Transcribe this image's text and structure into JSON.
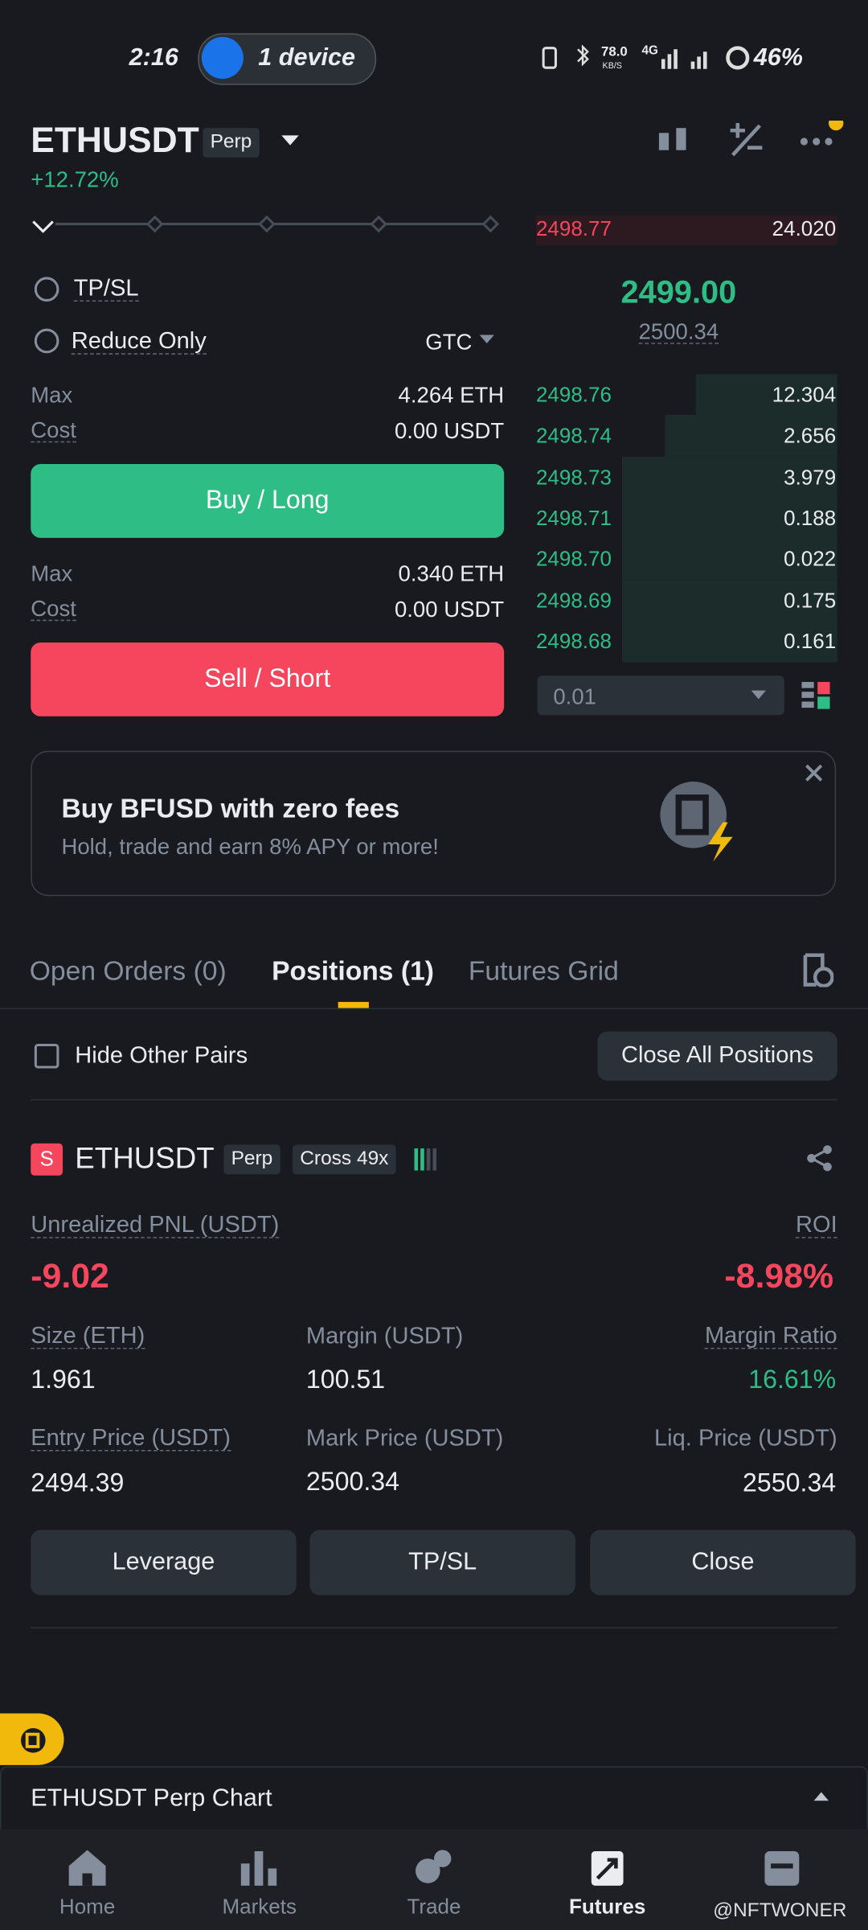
{
  "status": {
    "time": "2:16",
    "hotspot": "1 device",
    "speed": "78.0",
    "speed_unit": "KB/S",
    "network": "4G",
    "battery": "46%"
  },
  "header": {
    "symbol": "ETHUSDT",
    "tag": "Perp",
    "change": "+12.72%"
  },
  "orderbook": {
    "asks": [
      {
        "price": "2498.77",
        "qty": "24.020"
      }
    ],
    "last_price": "2499.00",
    "mark_price": "2500.34",
    "bids": [
      {
        "price": "2498.76",
        "qty": "12.304"
      },
      {
        "price": "2498.74",
        "qty": "2.656"
      },
      {
        "price": "2498.73",
        "qty": "3.979"
      },
      {
        "price": "2498.71",
        "qty": "0.188"
      },
      {
        "price": "2498.70",
        "qty": "0.022"
      },
      {
        "price": "2498.69",
        "qty": "0.175"
      },
      {
        "price": "2498.68",
        "qty": "0.161"
      }
    ],
    "depth": "0.01"
  },
  "form": {
    "tpsl": "TP/SL",
    "reduce_only": "Reduce Only",
    "tif": "GTC",
    "buy": {
      "max_label": "Max",
      "max": "4.264 ETH",
      "cost_label": "Cost",
      "cost": "0.00 USDT",
      "button": "Buy / Long"
    },
    "sell": {
      "max_label": "Max",
      "max": "0.340 ETH",
      "cost_label": "Cost",
      "cost": "0.00 USDT",
      "button": "Sell / Short"
    }
  },
  "banner": {
    "title": "Buy BFUSD with zero fees",
    "subtitle": "Hold, trade and earn 8% APY or more!"
  },
  "tabs": [
    "Open Orders (0)",
    "Positions (1)",
    "Futures Grid"
  ],
  "positions": {
    "hide_other": "Hide Other Pairs",
    "close_all": "Close All Positions",
    "item": {
      "side": "S",
      "symbol": "ETHUSDT",
      "tag": "Perp",
      "margin_mode": "Cross 49x",
      "pnl_label": "Unrealized PNL (USDT)",
      "pnl": "-9.02",
      "roi_label": "ROI",
      "roi": "-8.98%",
      "size_label": "Size (ETH)",
      "size": "1.961",
      "margin_label": "Margin (USDT)",
      "margin": "100.51",
      "ratio_label": "Margin Ratio",
      "ratio": "16.61%",
      "entry_label": "Entry Price (USDT)",
      "entry": "2494.39",
      "mark_label": "Mark Price (USDT)",
      "mark": "2500.34",
      "liq_label": "Liq. Price (USDT)",
      "liq": "2550.34",
      "buttons": [
        "Leverage",
        "TP/SL",
        "Close"
      ]
    }
  },
  "chart_bar": "ETHUSDT Perp Chart",
  "nav": [
    "Home",
    "Markets",
    "Trade",
    "Futures"
  ],
  "watermark": "@NFTWONER"
}
